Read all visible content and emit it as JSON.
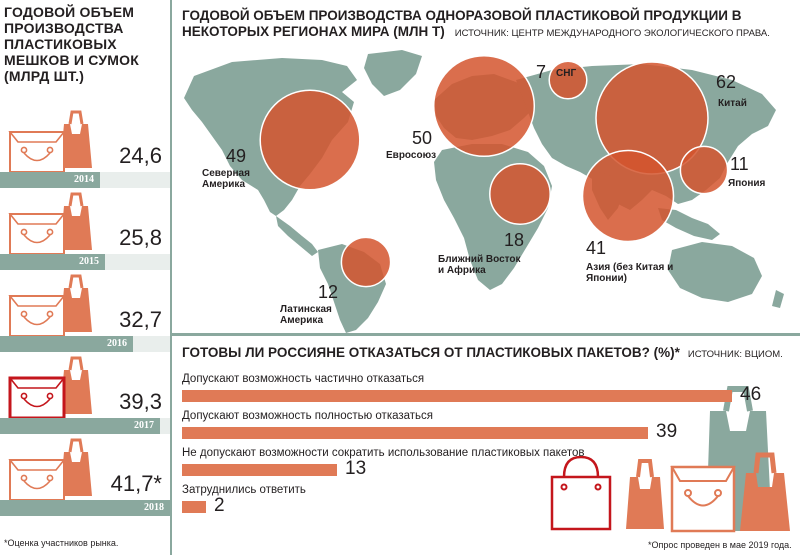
{
  "colors": {
    "accent": "#e07a56",
    "accent_dark": "#c4161c",
    "map_land": "#8aa89e",
    "bubble": "#d4552e",
    "year_bar": "#8aa89e"
  },
  "left_panel": {
    "title": "ГОДОВОЙ ОБЪЕМ ПРОИЗВОДСТВА ПЛАСТИКОВЫХ МЕШКОВ И СУМОК (МЛРД ШТ.)",
    "note": "*Оценка участников рынка."
  },
  "map_panel": {
    "title": "ГОДОВОЙ ОБЪЕМ ПРОИЗВОДСТВА ОДНОРАЗОВОЙ ПЛАСТИКОВОЙ ПРОДУКЦИИ В НЕКОТОРЫХ РЕГИОНАХ  МИРА (МЛН Т)",
    "source": "ИСТОЧНИК: ЦЕНТР МЕЖДУНАРОДНОГО ЭКОЛОГИЧЕСКОГО ПРАВА."
  },
  "survey_panel": {
    "title": "ГОТОВЫ ЛИ РОССИЯНЕ ОТКАЗАТЬСЯ ОТ ПЛАСТИКОВЫХ ПАКЕТОВ? (%)*",
    "source": "ИСТОЧНИК: ВЦИОМ.",
    "note": "*Опрос проведен в мае 2019 года."
  },
  "chart_data": [
    {
      "type": "bar",
      "title": "ГОДОВОЙ ОБЪЕМ ПРОИЗВОДСТВА ПЛАСТИКОВЫХ МЕШКОВ И СУМОК (МЛРД ШТ.)",
      "categories": [
        "2014",
        "2015",
        "2016",
        "2017",
        "2018"
      ],
      "values": [
        24.6,
        25.8,
        32.7,
        39.3,
        41.7
      ],
      "labels": [
        "24,6",
        "25,8",
        "32,7",
        "39,3",
        "41,7*"
      ],
      "icon": "shopping-bag-icon",
      "highlight_category": "2017"
    },
    {
      "type": "scatter",
      "title": "ГОДОВОЙ ОБЪЕМ ПРОИЗВОДСТВА ОДНОРАЗОВОЙ ПЛАСТИКОВОЙ ПРОДУКЦИИ В НЕКОТОРЫХ РЕГИОНАХ  МИРА (МЛН Т)",
      "subtype": "bubble-map",
      "regions": [
        {
          "key": "north-america",
          "name": "Северная Америка",
          "value": 49,
          "label": "49"
        },
        {
          "key": "eu",
          "name": "Евросоюз",
          "value": 50,
          "label": "50"
        },
        {
          "key": "cis",
          "name": "СНГ",
          "value": 7,
          "label": "7"
        },
        {
          "key": "china",
          "name": "Китай",
          "value": 62,
          "label": "62"
        },
        {
          "key": "japan",
          "name": "Япония",
          "value": 11,
          "label": "11"
        },
        {
          "key": "middle-east-africa",
          "name": "Ближний Восток и Африка",
          "value": 18,
          "label": "18"
        },
        {
          "key": "asia",
          "name": "Азия (без Китая и Японии)",
          "value": 41,
          "label": "41"
        },
        {
          "key": "latin-america",
          "name": "Латинская Америка",
          "value": 12,
          "label": "12"
        }
      ]
    },
    {
      "type": "bar",
      "orientation": "horizontal",
      "title": "ГОТОВЫ ЛИ РОССИЯНЕ ОТКАЗАТЬСЯ ОТ ПЛАСТИКОВЫХ ПАКЕТОВ? (%)*",
      "categories": [
        "Допускают возможность частично отказаться",
        "Допускают возможность полностью отказаться",
        "Не допускают возможности сократить использование пластиковых пакетов",
        "Затруднились ответить"
      ],
      "values": [
        46,
        39,
        13,
        2
      ],
      "labels": [
        "46",
        "39",
        "13",
        "2"
      ],
      "xlim": [
        0,
        46
      ]
    }
  ]
}
